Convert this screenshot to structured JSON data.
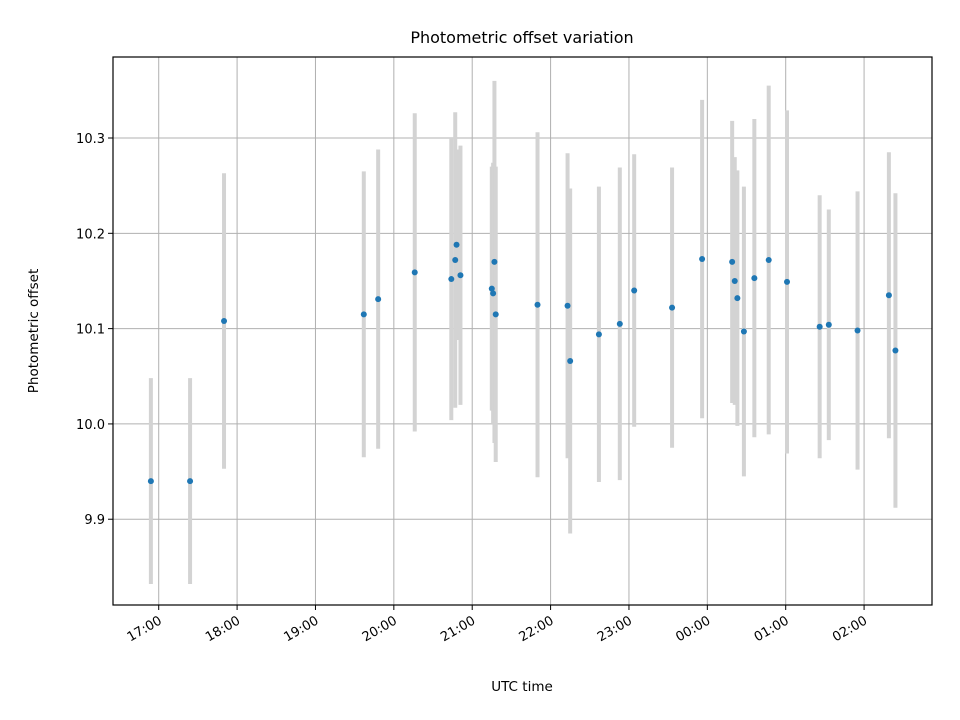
{
  "chart_data": {
    "type": "scatter",
    "title": "Photometric offset variation",
    "xlabel": "UTC time",
    "ylabel": "Photometric offset",
    "x_ticks": [
      "17:00",
      "18:00",
      "19:00",
      "20:00",
      "21:00",
      "22:00",
      "23:00",
      "00:00",
      "01:00",
      "02:00"
    ],
    "y_ticks": [
      "9.9",
      "10.0",
      "10.1",
      "10.2",
      "10.3"
    ],
    "y_tick_values": [
      9.9,
      10.0,
      10.1,
      10.2,
      10.3
    ],
    "x_range": [
      "16:25",
      "02:52"
    ],
    "ylim": [
      9.81,
      10.385
    ],
    "grid": true,
    "colors": {
      "marker": "#1f77b4",
      "errorbar": "#d3d3d3",
      "grid": "#b0b0b0"
    },
    "points": [
      {
        "x": "16:54",
        "y": 9.94,
        "err": 0.108
      },
      {
        "x": "17:24",
        "y": 9.94,
        "err": 0.108
      },
      {
        "x": "17:50",
        "y": 10.108,
        "err": 0.155
      },
      {
        "x": "19:37",
        "y": 10.115,
        "err": 0.15
      },
      {
        "x": "19:48",
        "y": 10.131,
        "err": 0.157
      },
      {
        "x": "20:16",
        "y": 10.159,
        "err": 0.167
      },
      {
        "x": "20:44",
        "y": 10.152,
        "err": 0.148
      },
      {
        "x": "20:47",
        "y": 10.172,
        "err": 0.155
      },
      {
        "x": "20:48",
        "y": 10.188,
        "err": 0.1
      },
      {
        "x": "20:51",
        "y": 10.156,
        "err": 0.136
      },
      {
        "x": "21:15",
        "y": 10.142,
        "err": 0.128
      },
      {
        "x": "21:16",
        "y": 10.137,
        "err": 0.137
      },
      {
        "x": "21:17",
        "y": 10.17,
        "err": 0.19
      },
      {
        "x": "21:18",
        "y": 10.115,
        "err": 0.155
      },
      {
        "x": "21:50",
        "y": 10.125,
        "err": 0.181
      },
      {
        "x": "22:13",
        "y": 10.124,
        "err": 0.16
      },
      {
        "x": "22:15",
        "y": 10.066,
        "err": 0.181
      },
      {
        "x": "22:37",
        "y": 10.094,
        "err": 0.155
      },
      {
        "x": "22:53",
        "y": 10.105,
        "err": 0.164
      },
      {
        "x": "23:04",
        "y": 10.14,
        "err": 0.143
      },
      {
        "x": "23:33",
        "y": 10.122,
        "err": 0.147
      },
      {
        "x": "23:56",
        "y": 10.173,
        "err": 0.167
      },
      {
        "x": "00:19",
        "y": 10.17,
        "err": 0.148
      },
      {
        "x": "00:21",
        "y": 10.15,
        "err": 0.13
      },
      {
        "x": "00:23",
        "y": 10.132,
        "err": 0.134
      },
      {
        "x": "00:28",
        "y": 10.097,
        "err": 0.152
      },
      {
        "x": "00:36",
        "y": 10.153,
        "err": 0.167
      },
      {
        "x": "00:47",
        "y": 10.172,
        "err": 0.183
      },
      {
        "x": "01:01",
        "y": 10.149,
        "err": 0.18
      },
      {
        "x": "01:26",
        "y": 10.102,
        "err": 0.138
      },
      {
        "x": "01:33",
        "y": 10.104,
        "err": 0.121
      },
      {
        "x": "01:55",
        "y": 10.098,
        "err": 0.146
      },
      {
        "x": "02:19",
        "y": 10.135,
        "err": 0.15
      },
      {
        "x": "02:24",
        "y": 10.077,
        "err": 0.165
      }
    ]
  }
}
